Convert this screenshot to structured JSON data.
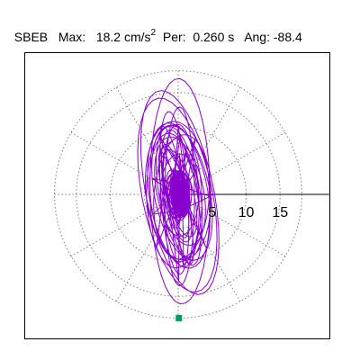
{
  "header": {
    "station": "SBEB",
    "max_label": "Max:",
    "max_value": "18.2",
    "max_unit": "cm/s",
    "max_unit_exp": "2",
    "per_label": "Per:",
    "per_value": "0.260 s",
    "ang_label": "Ang:",
    "ang_value": "-88.4"
  },
  "colors": {
    "trace": "#8800cc",
    "grid": "#808080",
    "axis": "#000000",
    "marker": "#009966"
  },
  "chart_data": {
    "type": "polar-orbit",
    "title": "SBEB   Max:  18.2 cm/s2  Per:  0.260 s   Ang: -88.4",
    "radial_ticks": [
      "5",
      "10",
      "15"
    ],
    "radial_tick_values": [
      5,
      10,
      15
    ],
    "rings": [
      5,
      10,
      15,
      18.2
    ],
    "spokes_deg": [
      0,
      30,
      60,
      90,
      120,
      150,
      180,
      210,
      240,
      270,
      300,
      330
    ],
    "grid": true,
    "max": 18.2,
    "max_unit": "cm/s^2",
    "period_s": 0.26,
    "angle_deg": -88.4,
    "marker": {
      "x": 0.1,
      "y": -18.2
    }
  }
}
